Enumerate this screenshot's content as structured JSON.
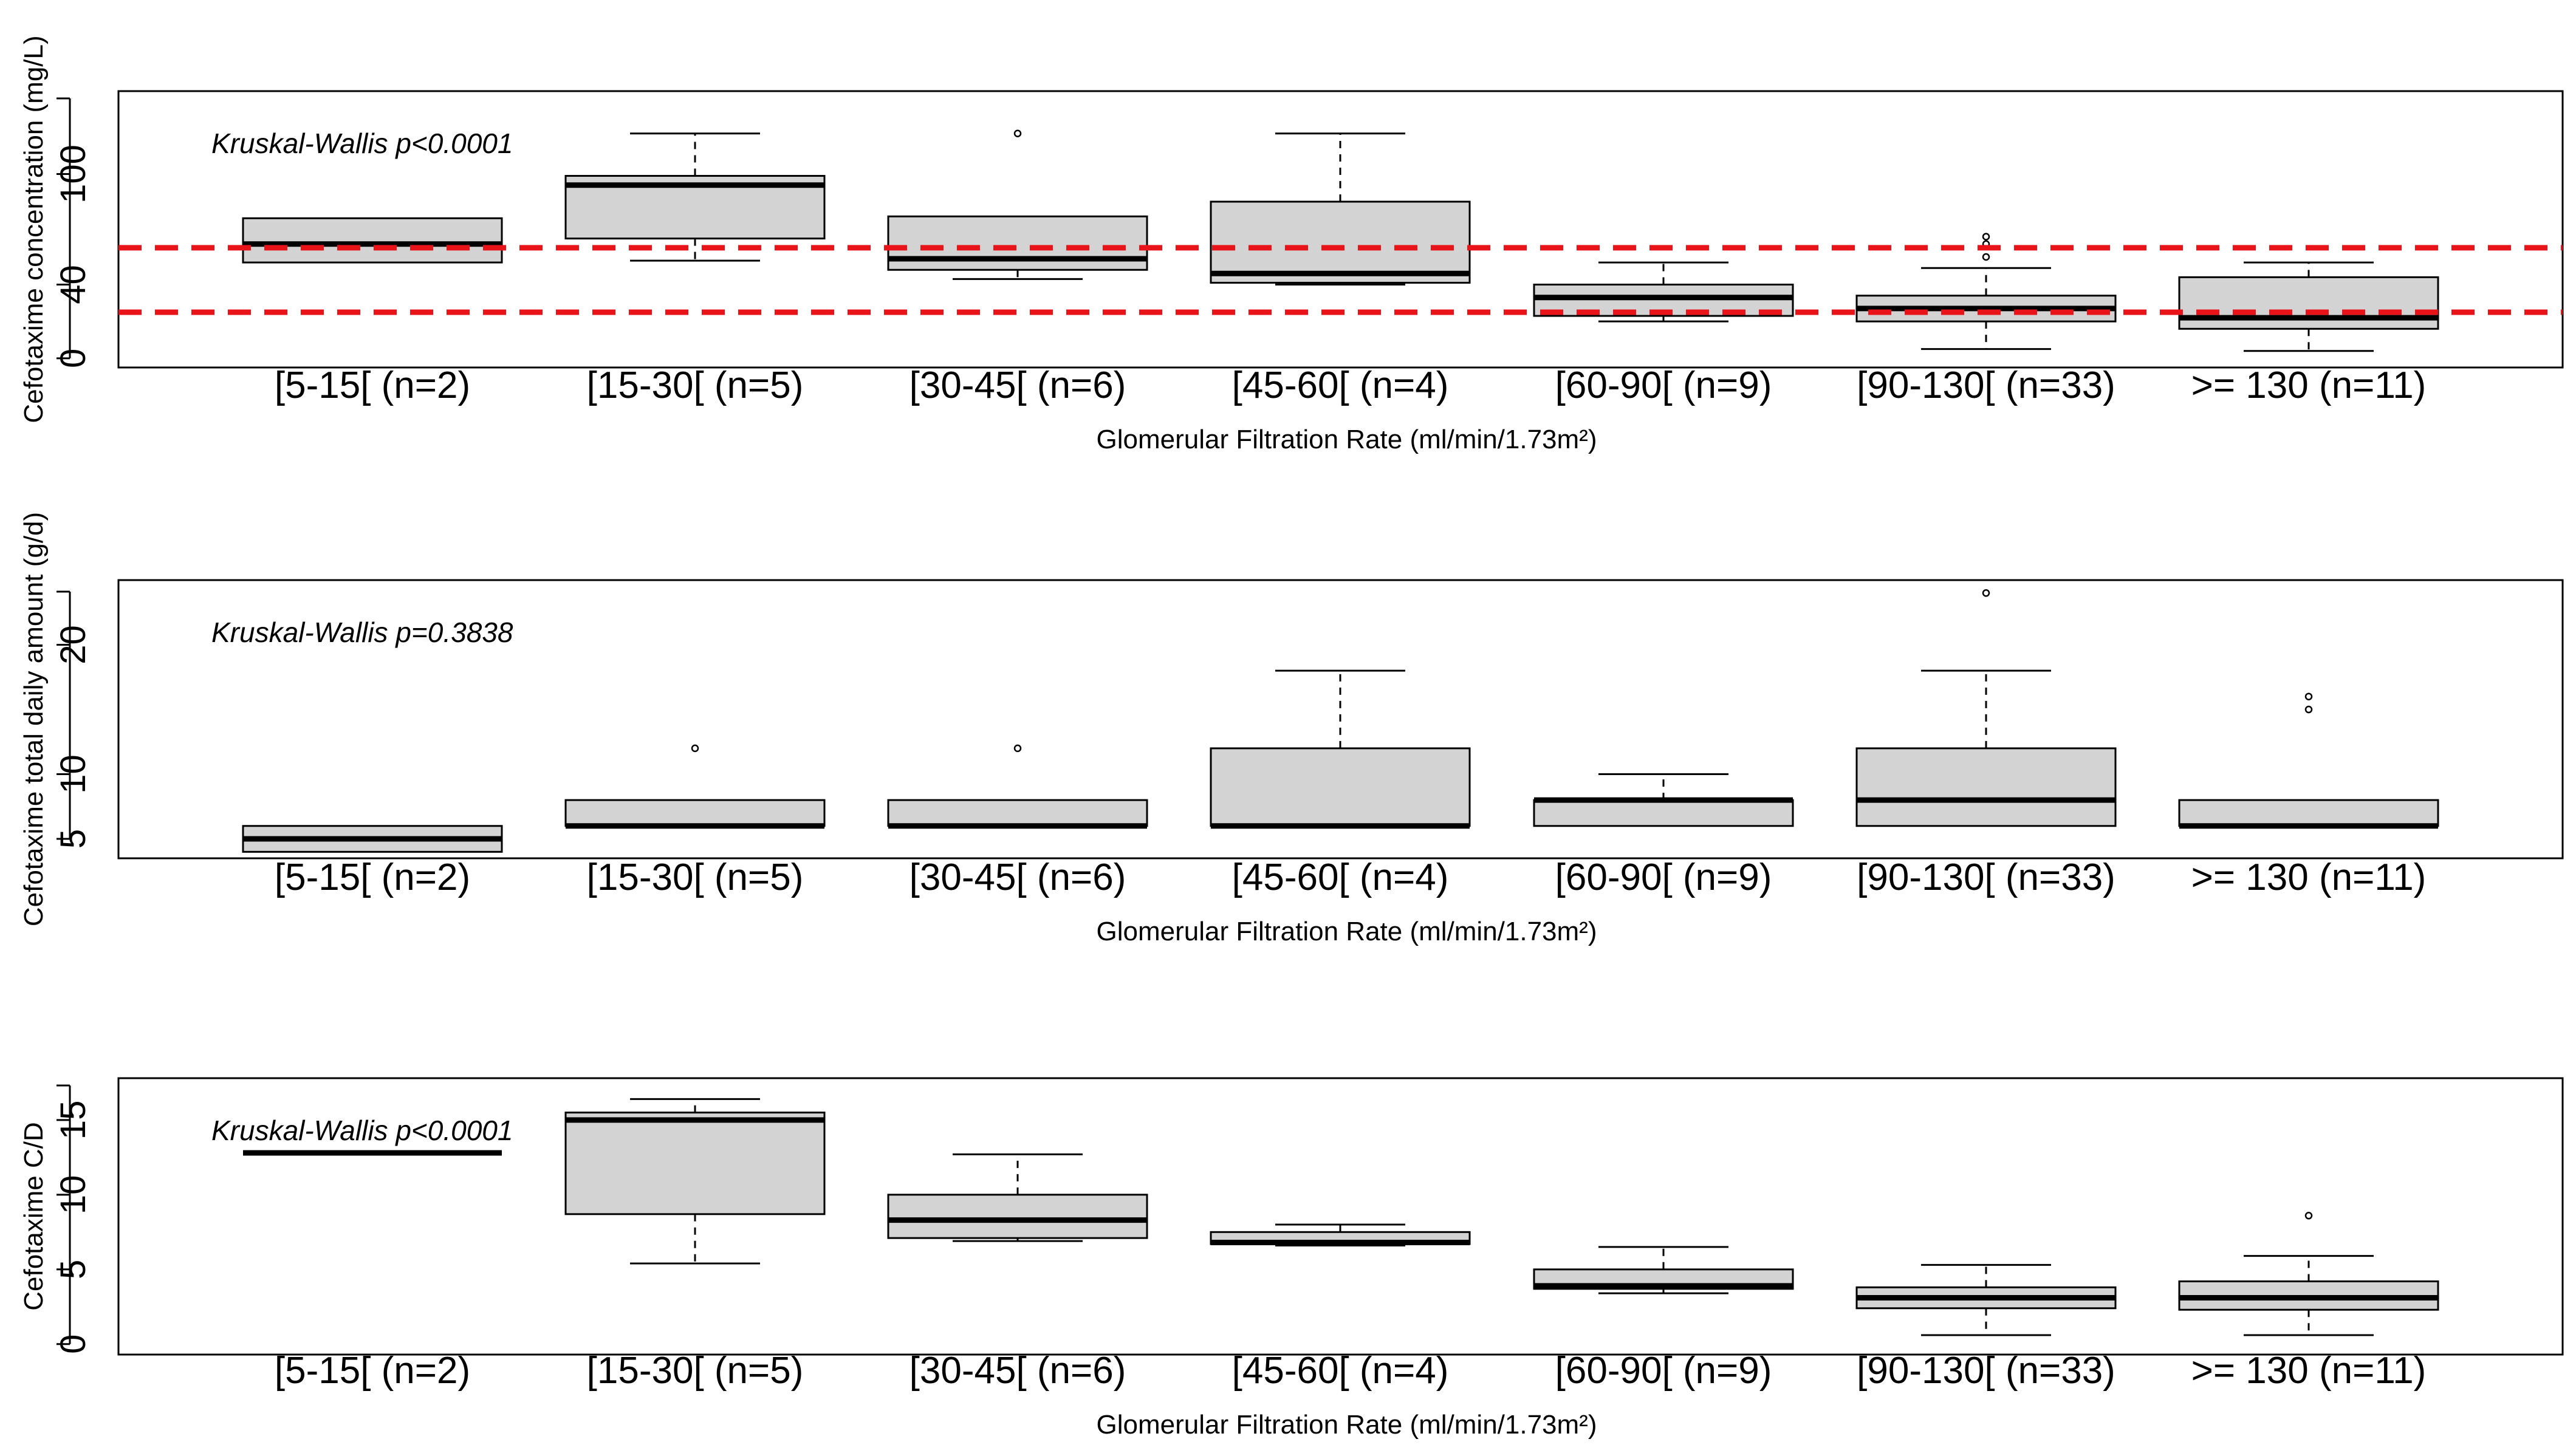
{
  "chart_data": [
    {
      "type": "box",
      "ylabel": "Cefotaxime concentration (mg/L)",
      "xlabel": "Glomerular Filtration Rate (ml/min/1.73m²)",
      "annotation": "Kruskal-Wallis p<0.0001",
      "categories": [
        "[5-15[ (n=2)",
        "[15-30[ (n=5)",
        "[30-45[ (n=6)",
        "[45-60[ (n=4)",
        "[60-90[ (n=9)",
        "[90-130[ (n=33)",
        ">= 130 (n=11)"
      ],
      "yticks": [
        0,
        40,
        100
      ],
      "ylim": [
        -5,
        145
      ],
      "reference_lines": [
        60,
        25
      ],
      "boxes": [
        {
          "wlo": 52,
          "q1": 52,
          "med": 62,
          "q3": 76,
          "whi": 76,
          "outliers": []
        },
        {
          "wlo": 53,
          "q1": 65,
          "med": 94,
          "q3": 99,
          "whi": 122,
          "outliers": []
        },
        {
          "wlo": 43,
          "q1": 48,
          "med": 54,
          "q3": 77,
          "whi": 77,
          "outliers": [
            122
          ]
        },
        {
          "wlo": 40,
          "q1": 41,
          "med": 46,
          "q3": 85,
          "whi": 122,
          "outliers": []
        },
        {
          "wlo": 20,
          "q1": 23,
          "med": 33,
          "q3": 40,
          "whi": 52,
          "outliers": []
        },
        {
          "wlo": 5,
          "q1": 20,
          "med": 27,
          "q3": 34,
          "whi": 49,
          "outliers": [
            66,
            62,
            55
          ]
        },
        {
          "wlo": 4,
          "q1": 16,
          "med": 22,
          "q3": 44,
          "whi": 52,
          "outliers": []
        }
      ]
    },
    {
      "type": "box",
      "ylabel": "Cefotaxime total daily amount (g/d)",
      "xlabel": "Glomerular Filtration Rate (ml/min/1.73m²)",
      "annotation": "Kruskal-Wallis p=0.3838",
      "categories": [
        "[5-15[ (n=2)",
        "[15-30[ (n=5)",
        "[30-45[ (n=6)",
        "[45-60[ (n=4)",
        "[60-90[ (n=9)",
        "[90-130[ (n=33)",
        ">= 130 (n=11)"
      ],
      "yticks": [
        5,
        10,
        20
      ],
      "ylim": [
        3.5,
        25
      ],
      "reference_lines": [],
      "boxes": [
        {
          "wlo": 4,
          "q1": 4,
          "med": 5,
          "q3": 6,
          "whi": 6,
          "outliers": []
        },
        {
          "wlo": 6,
          "q1": 6,
          "med": 6,
          "q3": 8,
          "whi": 8,
          "outliers": [
            12
          ]
        },
        {
          "wlo": 6,
          "q1": 6,
          "med": 6,
          "q3": 8,
          "whi": 8,
          "outliers": [
            12
          ]
        },
        {
          "wlo": 6,
          "q1": 6,
          "med": 6,
          "q3": 12,
          "whi": 18,
          "outliers": []
        },
        {
          "wlo": 6,
          "q1": 6,
          "med": 8,
          "q3": 8,
          "whi": 10,
          "outliers": []
        },
        {
          "wlo": 6,
          "q1": 6,
          "med": 8,
          "q3": 12,
          "whi": 18,
          "outliers": [
            24
          ]
        },
        {
          "wlo": 6,
          "q1": 6,
          "med": 6,
          "q3": 8,
          "whi": 8,
          "outliers": [
            16,
            15
          ]
        }
      ]
    },
    {
      "type": "box",
      "ylabel": "Cefotaxime C/D",
      "xlabel": "Glomerular Filtration Rate (ml/min/1.73m²)",
      "annotation": "Kruskal-Wallis p<0.0001",
      "categories": [
        "[5-15[ (n=2)",
        "[15-30[ (n=5)",
        "[30-45[ (n=6)",
        "[45-60[ (n=4)",
        "[60-90[ (n=9)",
        "[90-130[ (n=33)",
        ">= 130 (n=11)"
      ],
      "yticks": [
        0,
        5,
        10,
        15
      ],
      "ylim": [
        -0.7,
        17.8
      ],
      "reference_lines": [],
      "boxes": [
        {
          "wlo": 12.8,
          "q1": 12.8,
          "med": 12.8,
          "q3": 12.8,
          "whi": 12.8,
          "outliers": []
        },
        {
          "wlo": 5.4,
          "q1": 8.7,
          "med": 15.0,
          "q3": 15.5,
          "whi": 16.4,
          "outliers": []
        },
        {
          "wlo": 6.9,
          "q1": 7.1,
          "med": 8.3,
          "q3": 10.0,
          "whi": 12.7,
          "outliers": []
        },
        {
          "wlo": 6.6,
          "q1": 6.7,
          "med": 6.8,
          "q3": 7.5,
          "whi": 8.0,
          "outliers": []
        },
        {
          "wlo": 3.4,
          "q1": 3.7,
          "med": 3.9,
          "q3": 5.0,
          "whi": 6.5,
          "outliers": []
        },
        {
          "wlo": 0.6,
          "q1": 2.4,
          "med": 3.1,
          "q3": 3.8,
          "whi": 5.3,
          "outliers": []
        },
        {
          "wlo": 0.6,
          "q1": 2.3,
          "med": 3.1,
          "q3": 4.2,
          "whi": 5.9,
          "outliers": [
            8.6
          ]
        }
      ]
    }
  ]
}
